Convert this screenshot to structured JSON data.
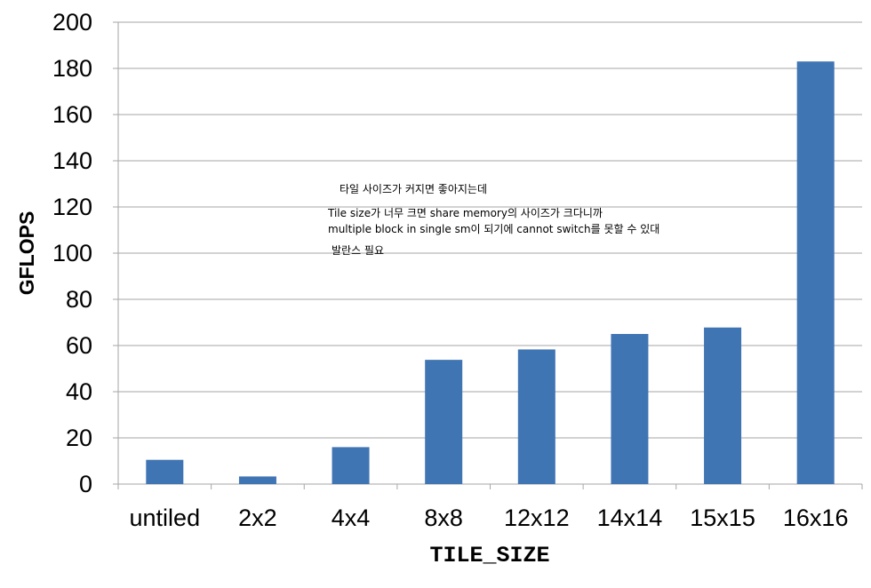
{
  "chart_data": {
    "type": "bar",
    "title": "",
    "xlabel": "TILE_SIZE",
    "ylabel": "GFLOPS",
    "categories": [
      "untiled",
      "2x2",
      "4x4",
      "8x8",
      "12x12",
      "14x14",
      "15x15",
      "16x16"
    ],
    "values": [
      10.5,
      3.3,
      16,
      53.8,
      58.3,
      65,
      67.8,
      183
    ],
    "ylim": [
      0,
      200
    ],
    "yticks": [
      0,
      20,
      40,
      60,
      80,
      100,
      120,
      140,
      160,
      180,
      200
    ],
    "grid": true,
    "legend": "none",
    "bar_color": "#4075B4",
    "annotations": [
      "타일 사이즈가 커지면 좋아지는데",
      "Tile size가 너무 크면 share memory의 사이즈가 크다니까",
      "multiple block in single sm이 되기에 cannot switch를 못할 수 있대",
      "발란스 필요"
    ]
  }
}
